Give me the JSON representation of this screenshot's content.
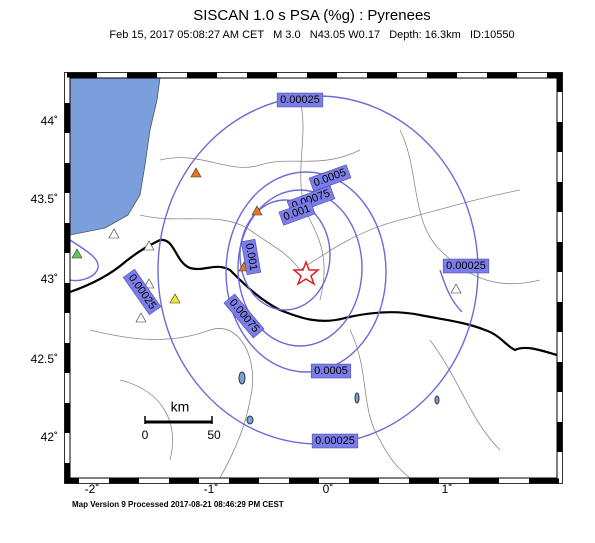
{
  "title": "SISCAN 1.0 s PSA (%g) : Pyrenees",
  "subtitle": "Feb 15, 2017 05:08:27 AM CET   M 3.0   N43.05 W0.17   Depth: 16.3km   ID:10550",
  "latitude_labels": [
    "44˚",
    "43.5˚",
    "43˚",
    "42.5˚",
    "42˚"
  ],
  "longitude_labels": [
    "-2˚",
    "-1˚",
    "0˚",
    "1˚"
  ],
  "contour_labels": [
    "0.00025",
    "0.0005",
    "0.00075",
    "0.001",
    "0.001",
    "0.00025",
    "0.00025",
    "0.00075",
    "0.0005",
    "0.00025"
  ],
  "scale_bar": {
    "unit": "km",
    "start": "0",
    "end": "50"
  },
  "footer": "Map Version 9 Processed 2017-08-21 08:46:29 PM CEST"
}
